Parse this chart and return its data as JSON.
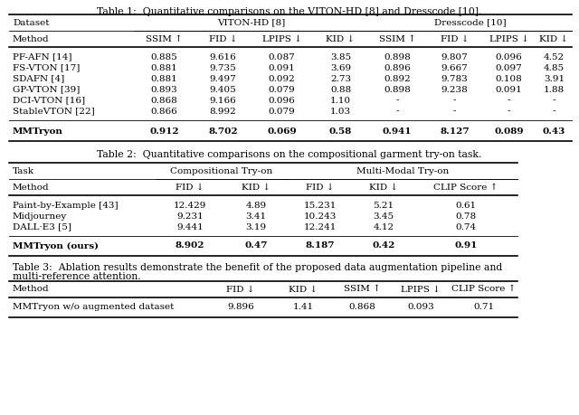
{
  "table1_title": "Table 1:  Quantitative comparisons on the VITON-HD [8] and Dresscode [10].",
  "table1_header_row2": [
    "Method",
    "SSIM ↑",
    "FID ↓",
    "LPIPS ↓",
    "KID ↓",
    "SSIM ↑",
    "FID ↓",
    "LPIPS ↓",
    "KID ↓"
  ],
  "table1_data": [
    [
      "PF-AFN [14]",
      "0.885",
      "9.616",
      "0.087",
      "3.85",
      "0.898",
      "9.807",
      "0.096",
      "4.52"
    ],
    [
      "FS-VTON [17]",
      "0.881",
      "9.735",
      "0.091",
      "3.69",
      "0.896",
      "9.667",
      "0.097",
      "4.85"
    ],
    [
      "SDAFN [4]",
      "0.881",
      "9.497",
      "0.092",
      "2.73",
      "0.892",
      "9.783",
      "0.108",
      "3.91"
    ],
    [
      "GP-VTON [39]",
      "0.893",
      "9.405",
      "0.079",
      "0.88",
      "0.898",
      "9.238",
      "0.091",
      "1.88"
    ],
    [
      "DCI-VTON [16]",
      "0.868",
      "9.166",
      "0.096",
      "1.10",
      "-",
      "-",
      "-",
      "-"
    ],
    [
      "StableVTON [22]",
      "0.866",
      "8.992",
      "0.079",
      "1.03",
      "-",
      "-",
      "-",
      "-"
    ]
  ],
  "table1_bold_row": [
    "MMTryon",
    "0.912",
    "8.702",
    "0.069",
    "0.58",
    "0.941",
    "8.127",
    "0.089",
    "0.43"
  ],
  "table2_title": "Table 2:  Quantitative comparisons on the compositional garment try-on task.",
  "table2_header_row2": [
    "Method",
    "FID ↓",
    "KID ↓",
    "FID ↓",
    "KID ↓",
    "CLIP Score ↑"
  ],
  "table2_data": [
    [
      "Paint-by-Example [43]",
      "12.429",
      "4.89",
      "15.231",
      "5.21",
      "0.61"
    ],
    [
      "Midjourney",
      "9.231",
      "3.41",
      "10.243",
      "3.45",
      "0.78"
    ],
    [
      "DALL·E3 [5]",
      "9.441",
      "3.19",
      "12.241",
      "4.12",
      "0.74"
    ]
  ],
  "table2_bold_row": [
    "MMTryon (ours)",
    "8.902",
    "0.47",
    "8.187",
    "0.42",
    "0.91"
  ],
  "table3_title_line1": "Table 3:  Ablation results demonstrate the benefit of the proposed data augmentation pipeline and",
  "table3_title_line2": "multi-reference attention.",
  "table3_header": [
    "Method",
    "FID ↓",
    "KID ↓",
    "SSIM ↑",
    "LPIPS ↓",
    "CLIP Score ↑"
  ],
  "table3_data": [
    [
      "MMTryon w/o augmented dataset",
      "9.896",
      "1.41",
      "0.868",
      "0.093",
      "0.71"
    ]
  ],
  "bg_color": "#ffffff",
  "text_color": "#000000",
  "font_size": 7.5,
  "title_font_size": 7.8
}
